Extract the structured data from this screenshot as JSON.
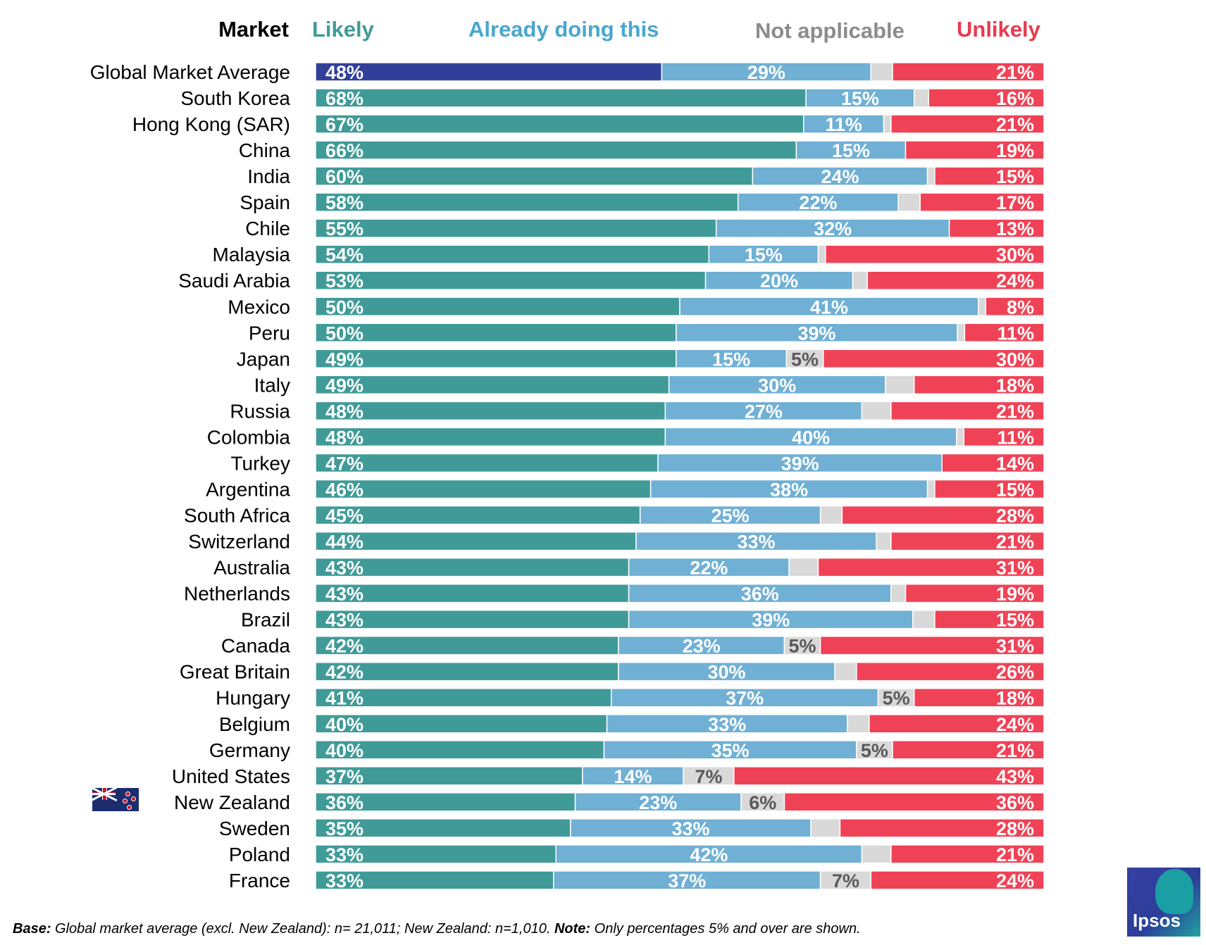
{
  "header": {
    "market": "Market",
    "likely": "Likely",
    "already": "Already doing this",
    "not_applicable": "Not applicable",
    "unlikely": "Unlikely"
  },
  "colors": {
    "likely": "#409b98",
    "likely_highlight": "#323f9a",
    "already": "#70b0d4",
    "not_applicable": "#d9d9d9",
    "unlikely": "#f04256",
    "header_likely": "#409b98",
    "header_already": "#49a6cf",
    "header_not_applicable": "#8c8c8c",
    "header_unlikely": "#e83a4f"
  },
  "chart_data": {
    "type": "bar",
    "orientation": "horizontal",
    "stacked": true,
    "normalized_percent": true,
    "categories": [
      "Global Market Average",
      "South Korea",
      "Hong Kong (SAR)",
      "China",
      "India",
      "Spain",
      "Chile",
      "Malaysia",
      "Saudi Arabia",
      "Mexico",
      "Peru",
      "Japan",
      "Italy",
      "Russia",
      "Colombia",
      "Turkey",
      "Argentina",
      "South Africa",
      "Switzerland",
      "Australia",
      "Netherlands",
      "Brazil",
      "Canada",
      "Great Britain",
      "Hungary",
      "Belgium",
      "Germany",
      "United States",
      "New Zealand",
      "Sweden",
      "Poland",
      "France"
    ],
    "series": [
      {
        "name": "Likely",
        "values": [
          48,
          68,
          67,
          66,
          60,
          58,
          55,
          54,
          53,
          50,
          50,
          49,
          49,
          48,
          48,
          47,
          46,
          45,
          44,
          43,
          43,
          43,
          42,
          42,
          41,
          40,
          40,
          37,
          36,
          35,
          33,
          33
        ]
      },
      {
        "name": "Already doing this",
        "values": [
          29,
          15,
          11,
          15,
          24,
          22,
          32,
          15,
          20,
          41,
          39,
          15,
          30,
          27,
          40,
          39,
          38,
          25,
          33,
          22,
          36,
          39,
          23,
          30,
          37,
          33,
          35,
          14,
          23,
          33,
          42,
          37
        ]
      },
      {
        "name": "Not applicable",
        "values": [
          3,
          2,
          1,
          0,
          1,
          3,
          0,
          1,
          2,
          1,
          1,
          5,
          4,
          4,
          1,
          0,
          1,
          3,
          2,
          4,
          2,
          3,
          5,
          3,
          5,
          3,
          5,
          7,
          6,
          4,
          4,
          7
        ]
      },
      {
        "name": "Unlikely",
        "values": [
          21,
          16,
          21,
          19,
          15,
          17,
          13,
          30,
          24,
          8,
          11,
          30,
          18,
          21,
          11,
          14,
          15,
          28,
          21,
          31,
          19,
          15,
          31,
          26,
          18,
          24,
          21,
          43,
          36,
          28,
          21,
          24
        ]
      }
    ],
    "value_labels": [
      [
        "48%",
        "29%",
        "",
        "21%"
      ],
      [
        "68%",
        "15%",
        "",
        "16%"
      ],
      [
        "67%",
        "11%",
        "",
        "21%"
      ],
      [
        "66%",
        "15%",
        "",
        "19%"
      ],
      [
        "60%",
        "24%",
        "",
        "15%"
      ],
      [
        "58%",
        "22%",
        "",
        "17%"
      ],
      [
        "55%",
        "32%",
        "",
        "13%"
      ],
      [
        "54%",
        "15%",
        "",
        "30%"
      ],
      [
        "53%",
        "20%",
        "",
        "24%"
      ],
      [
        "50%",
        "41%",
        "",
        "8%"
      ],
      [
        "50%",
        "39%",
        "",
        "11%"
      ],
      [
        "49%",
        "15%",
        "5%",
        "30%"
      ],
      [
        "49%",
        "30%",
        "",
        "18%"
      ],
      [
        "48%",
        "27%",
        "",
        "21%"
      ],
      [
        "48%",
        "40%",
        "",
        "11%"
      ],
      [
        "47%",
        "39%",
        "",
        "14%"
      ],
      [
        "46%",
        "38%",
        "",
        "15%"
      ],
      [
        "45%",
        "25%",
        "",
        "28%"
      ],
      [
        "44%",
        "33%",
        "",
        "21%"
      ],
      [
        "43%",
        "22%",
        "",
        "31%"
      ],
      [
        "43%",
        "36%",
        "",
        "19%"
      ],
      [
        "43%",
        "39%",
        "",
        "15%"
      ],
      [
        "42%",
        "23%",
        "5%",
        "31%"
      ],
      [
        "42%",
        "30%",
        "",
        "26%"
      ],
      [
        "41%",
        "37%",
        "5%",
        "18%"
      ],
      [
        "40%",
        "33%",
        "",
        "24%"
      ],
      [
        "40%",
        "35%",
        "5%",
        "21%"
      ],
      [
        "37%",
        "14%",
        "7%",
        "43%"
      ],
      [
        "36%",
        "23%",
        "6%",
        "36%"
      ],
      [
        "35%",
        "33%",
        "",
        "28%"
      ],
      [
        "33%",
        "42%",
        "",
        "21%"
      ],
      [
        "33%",
        "37%",
        "7%",
        "24%"
      ]
    ],
    "highlight_category": "Global Market Average",
    "xlim": [
      0,
      100
    ],
    "grid": false
  },
  "footer": {
    "base_label": "Base:",
    "base_text": " Global market average (excl. New Zealand): n= 21,011; New Zealand: n=1,010. ",
    "note_label": "Note:",
    "note_text": " Only percentages 5% and over are shown."
  },
  "logo": {
    "text": "Ipsos"
  },
  "flag": {
    "icon": "new-zealand-flag-icon",
    "category": "New Zealand"
  }
}
